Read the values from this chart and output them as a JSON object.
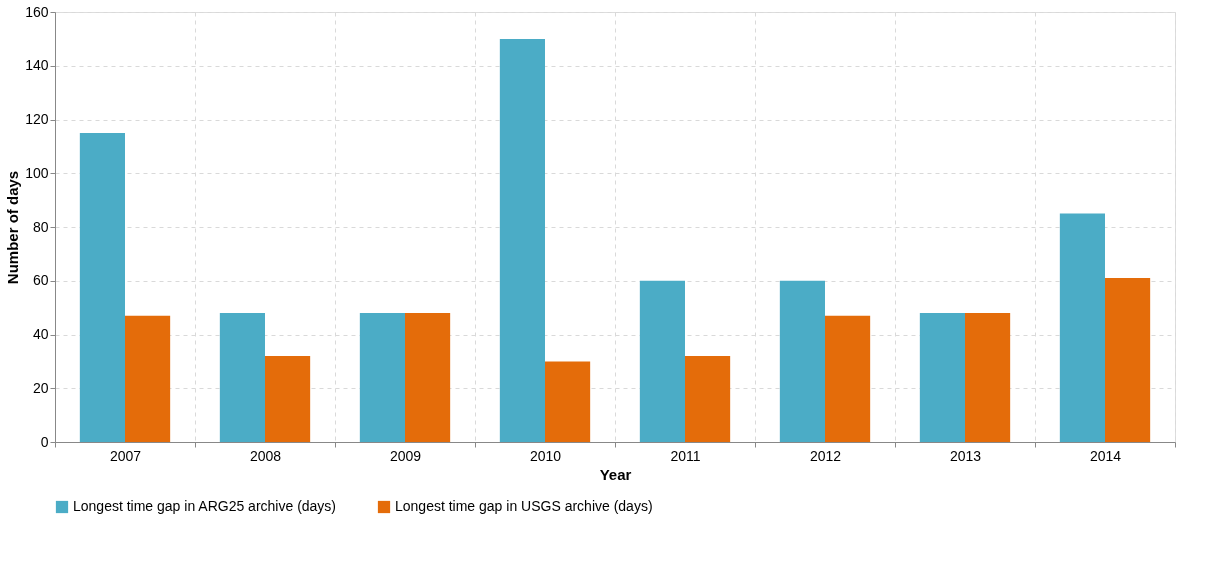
{
  "chart_data": {
    "type": "bar",
    "xlabel": "Year",
    "ylabel": "Number of days",
    "categories": [
      "2007",
      "2008",
      "2009",
      "2010",
      "2011",
      "2012",
      "2013",
      "2014"
    ],
    "series": [
      {
        "name": "Longest time gap in ARG25 archive (days)",
        "color": "#4bacc6",
        "values": [
          115,
          48,
          48,
          150,
          60,
          60,
          48,
          85
        ]
      },
      {
        "name": "Longest time gap in USGS archive (days)",
        "color": "#e46c0a",
        "values": [
          47,
          32,
          48,
          30,
          32,
          47,
          48,
          61
        ]
      }
    ],
    "ylim": [
      0,
      160
    ],
    "yticks": [
      0,
      20,
      40,
      60,
      80,
      100,
      120,
      140,
      160
    ],
    "grid": true,
    "legend": "bottom"
  }
}
